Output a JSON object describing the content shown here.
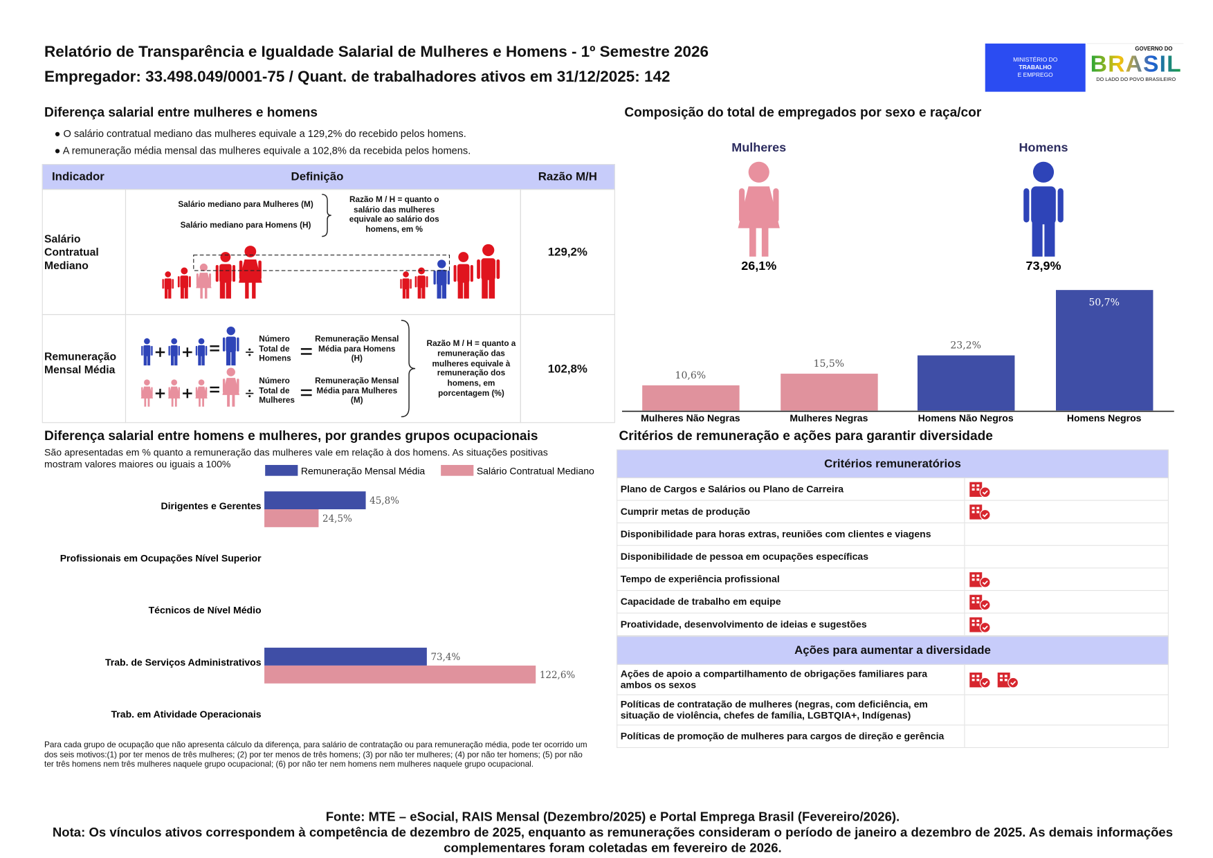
{
  "header": {
    "title": "Relatório de Transparência e Igualdade Salarial de Mulheres e Homens - 1º Semestre 2026",
    "subtitle": "Empregador: 33.498.049/0001-75 / Quant. de trabalhadores ativos em 31/12/2025: 142",
    "ministry_logo": [
      "MINISTÉRIO DO",
      "TRABALHO",
      "E EMPREGO"
    ],
    "gov_logo": {
      "top": "GOVERNO DO",
      "name": "BRASIL",
      "slogan": "DO LADO DO POVO BRASILEIRO"
    }
  },
  "salary_gap": {
    "title": "Diferença salarial entre mulheres e homens",
    "bullets": [
      "● O salário contratual mediano das mulheres equivale a 129,2% do recebido pelos homens.",
      "● A remuneração média mensal das mulheres equivale a 102,8% da recebida pelos homens."
    ],
    "table": {
      "headers": [
        "Indicador",
        "Definição",
        "Razão M/H"
      ],
      "rows": [
        {
          "indicator": "Salário Contratual Mediano",
          "ratio": "129,2%",
          "definition": {
            "women_label": "Salário mediano para Mulheres (M)",
            "men_label": "Salário mediano para Homens (H)",
            "explanation": "Razão M / H = quanto o salário das mulheres equivale ao salário dos homens, em %"
          }
        },
        {
          "indicator": "Remuneração Mensal Média",
          "ratio": "102,8%",
          "definition": {
            "men_count": "Número Total de Homens",
            "men_result": "Remuneração Mensal Média para Homens (H)",
            "women_count": "Número Total de Mulheres",
            "women_result": "Remuneração Mensal Média para Mulheres (M)",
            "explanation": "Razão M / H = quanto a remuneração das mulheres equivale à remuneração dos homens, em porcentagem (%)"
          }
        }
      ]
    }
  },
  "composition": {
    "title": "Composição do total de empregados por sexo e raça/cor",
    "pictogram": {
      "type": "pictogram",
      "categories": [
        "Mulheres",
        "Homens"
      ],
      "values": [
        26.1,
        73.9
      ],
      "value_labels": [
        "26,1%",
        "73,9%"
      ],
      "colors": [
        "#e8909e",
        "#2e44b8"
      ]
    },
    "chart": {
      "type": "bar",
      "categories": [
        "Mulheres Não Negras",
        "Mulheres Negras",
        "Homens Não Negros",
        "Homens Negros"
      ],
      "values": [
        10.6,
        15.5,
        23.2,
        50.7
      ],
      "value_labels": [
        "10,6%",
        "15,5%",
        "23,2%",
        "50,7%"
      ],
      "colors": [
        "#e0929d",
        "#e0929d",
        "#3f4ea6",
        "#3f4ea6"
      ]
    }
  },
  "occupational": {
    "title": "Diferença salarial entre homens e mulheres, por grandes grupos ocupacionais",
    "subtitle": "São apresentadas em % quanto a remuneração das mulheres vale em relação à dos homens. As situações positivas mostram valores maiores ou iguais a 100%",
    "chart": {
      "type": "bar",
      "orientation": "horizontal",
      "categories": [
        "Dirigentes e Gerentes",
        "Profissionais em Ocupações Nível Superior",
        "Técnicos de Nível Médio",
        "Trab. de Serviços Administrativos",
        "Trab. em Atividade Operacionais"
      ],
      "series": [
        {
          "name": "Remuneração Mensal Média",
          "color": "#3f4ea6",
          "values": [
            45.8,
            null,
            null,
            73.4,
            null
          ],
          "value_labels": [
            "45,8%",
            null,
            null,
            "73,4%",
            null
          ]
        },
        {
          "name": "Salário Contratual Mediano",
          "color": "#e0929d",
          "values": [
            24.5,
            null,
            null,
            122.6,
            null
          ],
          "value_labels": [
            "24,5%",
            null,
            null,
            "122,6%",
            null
          ]
        }
      ]
    },
    "footnote": "Para cada grupo de ocupação que não apresenta cálculo da diferença, para salário de contratação ou para remuneração média, pode ter ocorrido um dos seis motivos:(1) por ter menos de três mulheres; (2) por ter menos de três homens; (3) por não ter mulheres; (4) por não ter homens; (5) por não ter três homens nem três mulheres naquele grupo ocupacional; (6) por não ter nem homens nem mulheres naquele grupo ocupacional."
  },
  "criteria": {
    "title": "Critérios de remuneração e ações para garantir diversidade",
    "sections": [
      {
        "header": "Critérios remuneratórios",
        "rows": [
          {
            "label": "Plano de Cargos e Salários ou Plano de Carreira",
            "icons": 1
          },
          {
            "label": "Cumprir metas de produção",
            "icons": 1
          },
          {
            "label": "Disponibilidade para horas extras, reuniões com clientes e viagens",
            "icons": 0
          },
          {
            "label": "Disponibilidade de pessoa em ocupações específicas",
            "icons": 0
          },
          {
            "label": "Tempo de experiência profissional",
            "icons": 1
          },
          {
            "label": "Capacidade de trabalho em equipe",
            "icons": 1
          },
          {
            "label": "Proatividade, desenvolvimento de ideias e sugestões",
            "icons": 1
          }
        ]
      },
      {
        "header": "Ações para aumentar a diversidade",
        "rows": [
          {
            "label": "Ações de apoio a compartilhamento de obrigações familiares para ambos os sexos",
            "icons": 2
          },
          {
            "label": "Políticas de contratação de mulheres (negras, com deficiência, em situação de violência, chefes de família, LGBTQIA+, Indígenas)",
            "icons": 0
          },
          {
            "label": "Políticas de promoção de mulheres para cargos de direção e gerência",
            "icons": 0
          }
        ]
      }
    ]
  },
  "footer": {
    "source": "Fonte: MTE – eSocial, RAIS Mensal (Dezembro/2025) e Portal Emprega Brasil (Fevereiro/2026).",
    "note": "Nota: Os vínculos ativos correspondem à competência de dezembro de 2025, enquanto as remunerações consideram o período de janeiro a dezembro de 2025. As demais informações complementares foram coletadas em fevereiro de 2026."
  }
}
